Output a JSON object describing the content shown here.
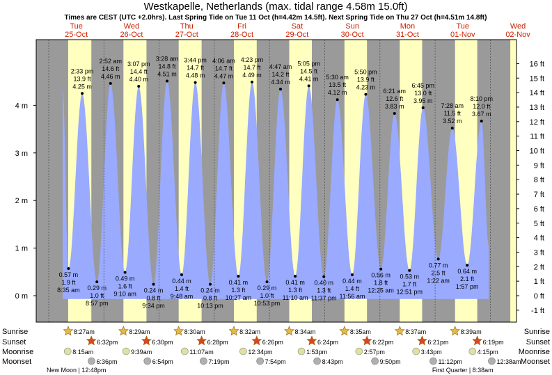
{
  "header": {
    "title": "Westkapelle, Netherlands (max. tidal range 4.58m 15.0ft)",
    "subtitle": "Times are CEST (UTC +2.0hrs). Last Spring Tide on Tue 11 Oct (h=4.42m 14.5ft). Next Spring Tide on Thu 27 Oct (h=4.51m 14.8ft)"
  },
  "colors": {
    "night": "#9a9a9a",
    "day": "#ffffc0",
    "tide": "#99aaff",
    "day_label": "#cc2200",
    "sun_star": "#e8b84a",
    "sunset_star": "#dd4422",
    "moon": "#e0e0a0"
  },
  "chart_data": {
    "type": "area",
    "title": "Westkapelle, Netherlands (max. tidal range 4.58m 15.0ft)",
    "xlabel": "",
    "ylabel": "",
    "y_left": {
      "unit": "m",
      "lim": [
        -0.35,
        4.62
      ],
      "ticks": [
        "0 m",
        "1 m",
        "2 m",
        "3 m",
        "4 m"
      ],
      "tick_values": [
        0,
        1,
        2,
        3,
        4
      ]
    },
    "y_right": {
      "unit": "ft",
      "lim": [
        -1.15,
        16.16
      ],
      "ticks": [
        "-1 ft",
        "0 ft",
        "1 ft",
        "2 ft",
        "3 ft",
        "4 ft",
        "5 ft",
        "6 ft",
        "7 ft",
        "8 ft",
        "9 ft",
        "10 ft",
        "11 ft",
        "12 ft",
        "13 ft",
        "14 ft",
        "15 ft",
        "16 ft"
      ],
      "tick_values": [
        -1,
        0,
        1,
        2,
        3,
        4,
        5,
        6,
        7,
        8,
        9,
        10,
        11,
        12,
        13,
        14,
        15,
        16
      ]
    },
    "days": [
      {
        "name": "Tue",
        "date": "25-Oct"
      },
      {
        "name": "Wed",
        "date": "26-Oct"
      },
      {
        "name": "Thu",
        "date": "27-Oct"
      },
      {
        "name": "Fri",
        "date": "28-Oct"
      },
      {
        "name": "Sat",
        "date": "29-Oct"
      },
      {
        "name": "Sun",
        "date": "30-Oct"
      },
      {
        "name": "Mon",
        "date": "31-Oct"
      },
      {
        "name": "Tue",
        "date": "01-Nov"
      },
      {
        "name": "Wed",
        "date": "02-Nov"
      }
    ],
    "tides": [
      {
        "day": 0,
        "time": "8:35 am",
        "height_m": 0.57,
        "feet": "1.9 ft",
        "type": "low"
      },
      {
        "day": 0,
        "time": "2:33 pm",
        "height_m": 4.25,
        "feet": "13.9 ft",
        "type": "high"
      },
      {
        "day": 0,
        "time": "8:57 pm",
        "height_m": 0.29,
        "feet": "1.0 ft",
        "type": "low"
      },
      {
        "day": 1,
        "time": "2:52 am",
        "height_m": 4.46,
        "feet": "14.6 ft",
        "type": "high"
      },
      {
        "day": 1,
        "time": "9:10 am",
        "height_m": 0.49,
        "feet": "1.6 ft",
        "type": "low"
      },
      {
        "day": 1,
        "time": "3:07 pm",
        "height_m": 4.4,
        "feet": "14.4 ft",
        "type": "high"
      },
      {
        "day": 1,
        "time": "9:34 pm",
        "height_m": 0.24,
        "feet": "0.8 ft",
        "type": "low"
      },
      {
        "day": 2,
        "time": "3:28 am",
        "height_m": 4.51,
        "feet": "14.8 ft",
        "type": "high"
      },
      {
        "day": 2,
        "time": "9:48 am",
        "height_m": 0.44,
        "feet": "1.4 ft",
        "type": "low"
      },
      {
        "day": 2,
        "time": "3:44 pm",
        "height_m": 4.48,
        "feet": "14.7 ft",
        "type": "high"
      },
      {
        "day": 2,
        "time": "10:13 pm",
        "height_m": 0.24,
        "feet": "0.8 ft",
        "type": "low"
      },
      {
        "day": 3,
        "time": "4:06 am",
        "height_m": 4.47,
        "feet": "14.7 ft",
        "type": "high"
      },
      {
        "day": 3,
        "time": "10:27 am",
        "height_m": 0.41,
        "feet": "1.3 ft",
        "type": "low"
      },
      {
        "day": 3,
        "time": "4:23 pm",
        "height_m": 4.49,
        "feet": "14.7 ft",
        "type": "high"
      },
      {
        "day": 3,
        "time": "10:53 pm",
        "height_m": 0.29,
        "feet": "1.0 ft",
        "type": "low"
      },
      {
        "day": 4,
        "time": "4:47 am",
        "height_m": 4.34,
        "feet": "14.2 ft",
        "type": "high"
      },
      {
        "day": 4,
        "time": "11:10 am",
        "height_m": 0.41,
        "feet": "1.3 ft",
        "type": "low"
      },
      {
        "day": 4,
        "time": "5:05 pm",
        "height_m": 4.41,
        "feet": "14.5 ft",
        "type": "high"
      },
      {
        "day": 4,
        "time": "11:37 pm",
        "height_m": 0.4,
        "feet": "1.3 ft",
        "type": "low"
      },
      {
        "day": 5,
        "time": "5:30 am",
        "height_m": 4.12,
        "feet": "13.5 ft",
        "type": "high"
      },
      {
        "day": 5,
        "time": "11:56 am",
        "height_m": 0.44,
        "feet": "1.4 ft",
        "type": "low"
      },
      {
        "day": 5,
        "time": "5:50 pm",
        "height_m": 4.23,
        "feet": "13.9 ft",
        "type": "high"
      },
      {
        "day": 6,
        "time": "12:25 am",
        "height_m": 0.56,
        "feet": "1.8 ft",
        "type": "low"
      },
      {
        "day": 6,
        "time": "6:21 am",
        "height_m": 3.83,
        "feet": "12.6 ft",
        "type": "high"
      },
      {
        "day": 6,
        "time": "12:51 pm",
        "height_m": 0.53,
        "feet": "1.7 ft",
        "type": "low"
      },
      {
        "day": 6,
        "time": "6:45 pm",
        "height_m": 3.95,
        "feet": "13.0 ft",
        "type": "high"
      },
      {
        "day": 7,
        "time": "1:22 am",
        "height_m": 0.77,
        "feet": "2.5 ft",
        "type": "low"
      },
      {
        "day": 7,
        "time": "7:28 am",
        "height_m": 3.52,
        "feet": "11.5 ft",
        "type": "high"
      },
      {
        "day": 7,
        "time": "1:57 pm",
        "height_m": 0.64,
        "feet": "2.1 ft",
        "type": "low"
      },
      {
        "day": 7,
        "time": "8:10 pm",
        "height_m": 3.67,
        "feet": "12.0 ft",
        "type": "high"
      }
    ],
    "sunrise": [
      "8:27am",
      "8:29am",
      "8:30am",
      "8:32am",
      "8:34am",
      "8:35am",
      "8:37am",
      "8:39am"
    ],
    "sunset": [
      "6:32pm",
      "6:30pm",
      "6:28pm",
      "6:26pm",
      "6:24pm",
      "6:22pm",
      "6:21pm",
      "6:19pm"
    ],
    "moonrise": [
      {
        "day": 0,
        "time": "8:15am"
      },
      {
        "day": 1,
        "time": "9:39am"
      },
      {
        "day": 2,
        "time": "11:07am"
      },
      {
        "day": 3,
        "time": "12:34pm"
      },
      {
        "day": 4,
        "time": "1:53pm"
      },
      {
        "day": 5,
        "time": "2:57pm"
      },
      {
        "day": 6,
        "time": "3:43pm"
      },
      {
        "day": 7,
        "time": "4:15pm"
      }
    ],
    "moonset": [
      {
        "day": 0,
        "time": "6:36pm"
      },
      {
        "day": 1,
        "time": "6:54pm"
      },
      {
        "day": 2,
        "time": "7:19pm"
      },
      {
        "day": 3,
        "time": "7:54pm"
      },
      {
        "day": 4,
        "time": "8:43pm"
      },
      {
        "day": 5,
        "time": "9:50pm"
      },
      {
        "day": 6,
        "time": "11:12pm"
      },
      {
        "day": 8,
        "time": "12:38am"
      }
    ],
    "moon_phases": [
      {
        "day": 0,
        "label": "New Moon",
        "time": "12:48pm"
      },
      {
        "day": 7,
        "label": "First Quarter",
        "time": "8:38am"
      }
    ]
  },
  "rows": {
    "sunrise": "Sunrise",
    "sunset": "Sunset",
    "moonrise": "Moonrise",
    "moonset": "Moonset"
  }
}
